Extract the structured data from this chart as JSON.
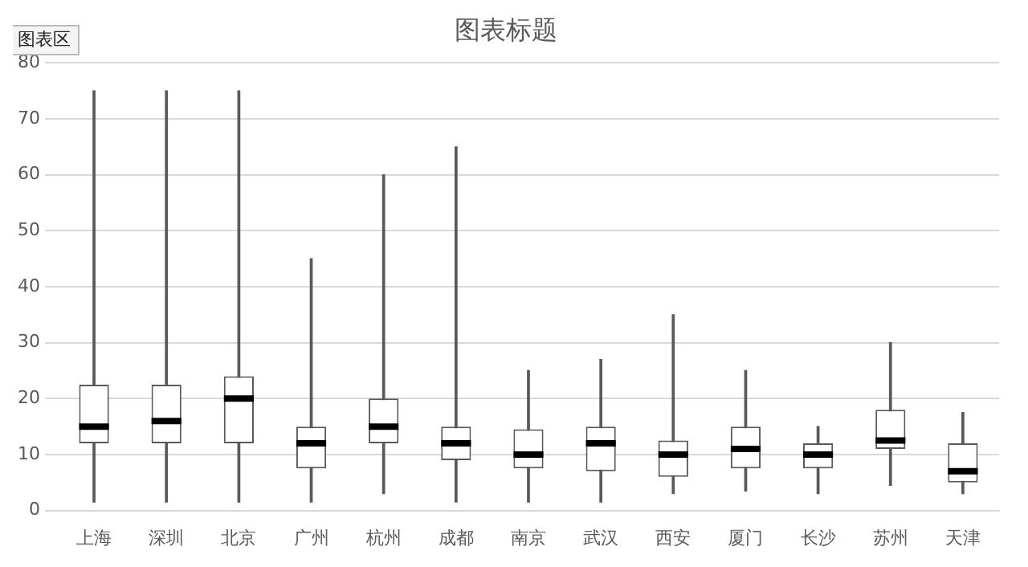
{
  "chart_data": {
    "type": "box",
    "title": "图表标题",
    "annotations": [
      "图表区"
    ],
    "categories": [
      "上海",
      "深圳",
      "北京",
      "广州",
      "杭州",
      "成都",
      "南京",
      "武汉",
      "西安",
      "厦门",
      "长沙",
      "苏州",
      "天津"
    ],
    "boxes": [
      {
        "low": 1.5,
        "q1": 12,
        "median": 15,
        "q3": 22.5,
        "high": 75
      },
      {
        "low": 1.5,
        "q1": 12,
        "median": 16,
        "q3": 22.5,
        "high": 75
      },
      {
        "low": 1.5,
        "q1": 12,
        "median": 20,
        "q3": 24,
        "high": 75
      },
      {
        "low": 1.5,
        "q1": 7.5,
        "median": 12,
        "q3": 15,
        "high": 45
      },
      {
        "low": 3,
        "q1": 12,
        "median": 15,
        "q3": 20,
        "high": 60
      },
      {
        "low": 1.5,
        "q1": 9,
        "median": 12,
        "q3": 15,
        "high": 65
      },
      {
        "low": 1.5,
        "q1": 7.5,
        "median": 10,
        "q3": 14.5,
        "high": 25
      },
      {
        "low": 1.5,
        "q1": 7,
        "median": 12,
        "q3": 15,
        "high": 27
      },
      {
        "low": 3,
        "q1": 6,
        "median": 10,
        "q3": 12.5,
        "high": 35
      },
      {
        "low": 3.5,
        "q1": 7.5,
        "median": 11,
        "q3": 15,
        "high": 25
      },
      {
        "low": 3,
        "q1": 7.5,
        "median": 10,
        "q3": 12,
        "high": 15
      },
      {
        "low": 4.5,
        "q1": 11,
        "median": 12.5,
        "q3": 18,
        "high": 30
      },
      {
        "low": 3,
        "q1": 5,
        "median": 7,
        "q3": 12,
        "high": 17.5
      }
    ],
    "color": "#595959",
    "ylim": [
      0,
      80
    ],
    "yticks": [
      0,
      10,
      20,
      30,
      40,
      50,
      60,
      70,
      80
    ],
    "grid": "y",
    "legend": false
  }
}
